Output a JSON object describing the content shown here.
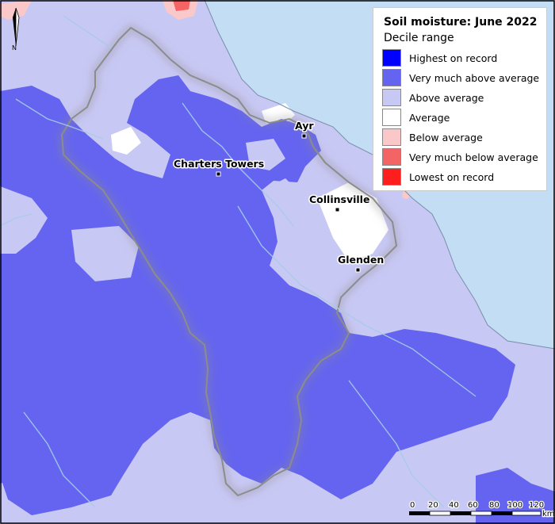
{
  "legend": {
    "title": "Soil moisture: June 2022",
    "subtitle": "Decile range",
    "items": [
      {
        "label": "Highest on record",
        "color": "#0000ff"
      },
      {
        "label": "Very much above average",
        "color": "#6464f0"
      },
      {
        "label": "Above average",
        "color": "#c8c8f5"
      },
      {
        "label": "Average",
        "color": "#ffffff"
      },
      {
        "label": "Below average",
        "color": "#fac8c8"
      },
      {
        "label": "Very much below average",
        "color": "#f56464"
      },
      {
        "label": "Lowest on record",
        "color": "#ff1e1e"
      }
    ]
  },
  "towns": [
    {
      "name": "Ayr"
    },
    {
      "name": "Charters Towers"
    },
    {
      "name": "Collinsville"
    },
    {
      "name": "Glenden"
    }
  ],
  "scale": {
    "ticks": [
      "0",
      "20",
      "40",
      "60",
      "80",
      "100",
      "120"
    ],
    "unit": "km"
  },
  "north_arrow": {
    "label": "N"
  },
  "colors": {
    "sea": "#c3ddf5",
    "above_average": "#c8c8f5",
    "very_much_above": "#6464f0",
    "boundary": "#8c8c8c",
    "rivers": "#a7cbe4"
  }
}
